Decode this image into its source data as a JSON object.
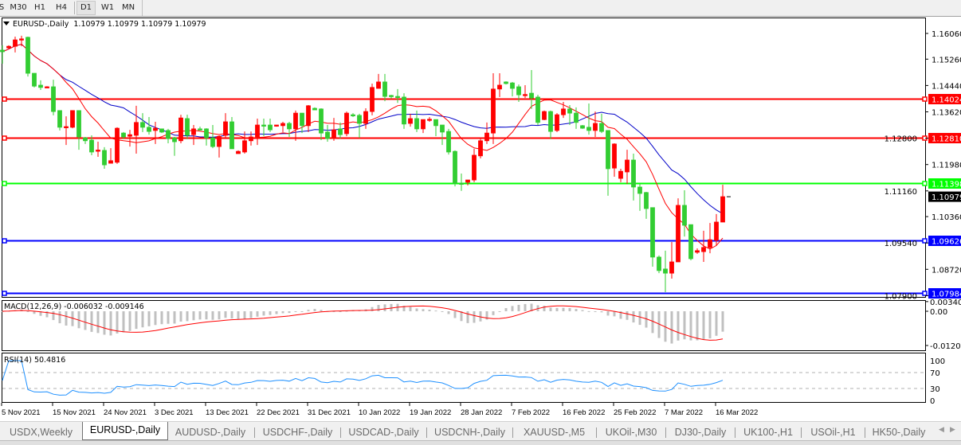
{
  "toolbar": {
    "timeframes": [
      {
        "label": "S",
        "active": false
      },
      {
        "label": "M30",
        "active": false
      },
      {
        "label": "H1",
        "active": false
      },
      {
        "label": "H4",
        "active": false
      },
      {
        "label": "D1",
        "active": true
      },
      {
        "label": "W1",
        "active": false
      },
      {
        "label": "MN",
        "active": false
      }
    ]
  },
  "chart": {
    "symbol_label": "EURUSD-,Daily",
    "ohlc_label": "1.10979 1.10979 1.10979 1.10979",
    "current_price": 1.10979,
    "bull_color": "#ff0000",
    "bear_color": "#32cd32",
    "ma_fast_color": "#ff0000",
    "ma_slow_color": "#0000c8",
    "price_axis_ticks": [
      "1.16060",
      "1.15260",
      "1.14440",
      "1.13620",
      "1.12800",
      "1.11980",
      "1.11160",
      "1.10360",
      "1.09540",
      "1.08720",
      "1.07900"
    ],
    "levels": [
      {
        "price": "1.14024",
        "color": "#ff0000"
      },
      {
        "price": "1.12810",
        "color": "#ff0000"
      },
      {
        "price": "1.11398",
        "color": "#00ff00"
      },
      {
        "price": "1.09626",
        "color": "#0000ff"
      },
      {
        "price": "1.07984",
        "color": "#0000ff"
      }
    ],
    "current_price_label": "1.10979",
    "date_labels": [
      "5 Nov 2021",
      "15 Nov 2021",
      "24 Nov 2021",
      "3 Dec 2021",
      "13 Dec 2021",
      "22 Dec 2021",
      "31 Dec 2021",
      "10 Jan 2022",
      "19 Jan 2022",
      "28 Jan 2022",
      "7 Feb 2022",
      "16 Feb 2022",
      "25 Feb 2022",
      "7 Mar 2022",
      "16 Mar 2022"
    ],
    "candles": [
      [
        1.1554,
        1.1569,
        1.1512,
        1.1549
      ],
      [
        1.1561,
        1.1569,
        1.1559,
        1.1566
      ],
      [
        1.1566,
        1.1596,
        1.1547,
        1.1586
      ],
      [
        1.1586,
        1.1599,
        1.1566,
        1.1589
      ],
      [
        1.1594,
        1.1596,
        1.1472,
        1.1482
      ],
      [
        1.1482,
        1.1482,
        1.1438,
        1.1442
      ],
      [
        1.1445,
        1.146,
        1.143,
        1.1438
      ],
      [
        1.144,
        1.1442,
        1.1438,
        1.144
      ],
      [
        1.144,
        1.1462,
        1.1351,
        1.1363
      ],
      [
        1.1366,
        1.1366,
        1.1304,
        1.1314
      ],
      [
        1.1316,
        1.1348,
        1.1259,
        1.1316
      ],
      [
        1.1314,
        1.1366,
        1.1311,
        1.1366
      ],
      [
        1.1366,
        1.1366,
        1.1244,
        1.1284
      ],
      [
        1.1281,
        1.1284,
        1.1262,
        1.1272
      ],
      [
        1.1274,
        1.1289,
        1.1227,
        1.1237
      ],
      [
        1.1242,
        1.1269,
        1.1222,
        1.1243
      ],
      [
        1.1242,
        1.1252,
        1.1185,
        1.1197
      ],
      [
        1.1202,
        1.1249,
        1.1202,
        1.121
      ],
      [
        1.1205,
        1.1314,
        1.12,
        1.1311
      ],
      [
        1.1296,
        1.1299,
        1.1277,
        1.1284
      ],
      [
        1.1286,
        1.1306,
        1.1254,
        1.1291
      ],
      [
        1.1289,
        1.1381,
        1.1232,
        1.1329
      ],
      [
        1.1329,
        1.1358,
        1.1299,
        1.1314
      ],
      [
        1.1314,
        1.1346,
        1.1291,
        1.1301
      ],
      [
        1.1304,
        1.1331,
        1.1262,
        1.1311
      ],
      [
        1.1309,
        1.1309,
        1.1296,
        1.1299
      ],
      [
        1.1304,
        1.1309,
        1.1264,
        1.1279
      ],
      [
        1.1281,
        1.1284,
        1.1225,
        1.1269
      ],
      [
        1.1272,
        1.1353,
        1.1264,
        1.1343
      ],
      [
        1.1341,
        1.1353,
        1.1277,
        1.1289
      ],
      [
        1.1291,
        1.1321,
        1.1259,
        1.1309
      ],
      [
        1.1309,
        1.1316,
        1.1306,
        1.1306
      ],
      [
        1.1309,
        1.1311,
        1.1257,
        1.1281
      ],
      [
        1.1281,
        1.1321,
        1.1249,
        1.1254
      ],
      [
        1.1254,
        1.1289,
        1.122,
        1.1286
      ],
      [
        1.1289,
        1.1358,
        1.1281,
        1.1331
      ],
      [
        1.1331,
        1.1346,
        1.1247,
        1.1247
      ],
      [
        1.1232,
        1.1242,
        1.1232,
        1.1239
      ],
      [
        1.1237,
        1.1301,
        1.1232,
        1.1272
      ],
      [
        1.1272,
        1.1301,
        1.1257,
        1.1284
      ],
      [
        1.1284,
        1.1341,
        1.1259,
        1.1321
      ],
      [
        1.1321,
        1.1341,
        1.1286,
        1.1319
      ],
      [
        1.1321,
        1.1341,
        1.1299,
        1.1306
      ],
      [
        1.1319,
        1.1321,
        1.1316,
        1.1321
      ],
      [
        1.1319,
        1.1331,
        1.1299,
        1.1326
      ],
      [
        1.1326,
        1.1331,
        1.1284,
        1.1309
      ],
      [
        1.1309,
        1.1366,
        1.1272,
        1.1358
      ],
      [
        1.1358,
        1.1358,
        1.1296,
        1.1319
      ],
      [
        1.1319,
        1.1383,
        1.1299,
        1.1381
      ],
      [
        1.1373,
        1.1376,
        1.1368,
        1.1368
      ],
      [
        1.1371,
        1.1373,
        1.1274,
        1.1296
      ],
      [
        1.1299,
        1.1321,
        1.1269,
        1.1279
      ],
      [
        1.1281,
        1.1343,
        1.1272,
        1.1306
      ],
      [
        1.1309,
        1.1329,
        1.1279,
        1.1291
      ],
      [
        1.1294,
        1.1363,
        1.1286,
        1.1358
      ],
      [
        1.1353,
        1.1358,
        1.1346,
        1.1351
      ],
      [
        1.1351,
        1.1356,
        1.1281,
        1.1326
      ],
      [
        1.1326,
        1.1373,
        1.1309,
        1.1363
      ],
      [
        1.1363,
        1.145,
        1.1351,
        1.1438
      ],
      [
        1.1435,
        1.148,
        1.1435,
        1.1455
      ],
      [
        1.1455,
        1.148,
        1.1395,
        1.141
      ],
      [
        1.1413,
        1.1415,
        1.1403,
        1.141
      ],
      [
        1.141,
        1.1433,
        1.139,
        1.1408
      ],
      [
        1.1408,
        1.142,
        1.1309,
        1.1324
      ],
      [
        1.1326,
        1.1356,
        1.1316,
        1.1341
      ],
      [
        1.1341,
        1.1366,
        1.1299,
        1.1309
      ],
      [
        1.1309,
        1.1338,
        1.1296,
        1.1338
      ],
      [
        1.1338,
        1.1346,
        1.1331,
        1.1339
      ],
      [
        1.1338,
        1.1338,
        1.1286,
        1.1319
      ],
      [
        1.1321,
        1.1321,
        1.1259,
        1.1299
      ],
      [
        1.1301,
        1.1309,
        1.1229,
        1.1237
      ],
      [
        1.1239,
        1.1242,
        1.113,
        1.114
      ],
      [
        1.114,
        1.117,
        1.1116,
        1.1139
      ],
      [
        1.1143,
        1.115,
        1.1133,
        1.115
      ],
      [
        1.115,
        1.1247,
        1.1143,
        1.1227
      ],
      [
        1.1225,
        1.1279,
        1.1217,
        1.1272
      ],
      [
        1.1272,
        1.1329,
        1.1262,
        1.1296
      ],
      [
        1.1296,
        1.1482,
        1.1262,
        1.1433
      ],
      [
        1.1433,
        1.1482,
        1.1408,
        1.1445
      ],
      [
        1.1455,
        1.1457,
        1.1447,
        1.145
      ],
      [
        1.1452,
        1.1455,
        1.141,
        1.1435
      ],
      [
        1.144,
        1.1447,
        1.1393,
        1.1415
      ],
      [
        1.1415,
        1.1445,
        1.1405,
        1.1416
      ],
      [
        1.142,
        1.1492,
        1.1371,
        1.1405
      ],
      [
        1.1408,
        1.1415,
        1.1321,
        1.1329
      ],
      [
        1.1338,
        1.1366,
        1.1336,
        1.1363
      ],
      [
        1.1363,
        1.1366,
        1.1277,
        1.1301
      ],
      [
        1.1304,
        1.1358,
        1.1299,
        1.1353
      ],
      [
        1.1353,
        1.1393,
        1.1343,
        1.1371
      ],
      [
        1.1371,
        1.1383,
        1.1321,
        1.1358
      ],
      [
        1.1358,
        1.1376,
        1.1309,
        1.1329
      ],
      [
        1.1319,
        1.1321,
        1.1309,
        1.1311
      ],
      [
        1.1314,
        1.1388,
        1.1291,
        1.1304
      ],
      [
        1.1304,
        1.1363,
        1.1284,
        1.1326
      ],
      [
        1.1326,
        1.1356,
        1.1296,
        1.1301
      ],
      [
        1.1304,
        1.1304,
        1.1101,
        1.1185
      ],
      [
        1.1187,
        1.1264,
        1.116,
        1.1262
      ],
      [
        1.1155,
        1.1185,
        1.1143,
        1.1177
      ],
      [
        1.1175,
        1.1244,
        1.1138,
        1.1212
      ],
      [
        1.1212,
        1.1232,
        1.1086,
        1.1128
      ],
      [
        1.1128,
        1.1138,
        1.1054,
        1.1108
      ],
      [
        1.1111,
        1.1113,
        1.1029,
        1.1061
      ],
      [
        1.1064,
        1.1064,
        1.088,
        1.091
      ],
      [
        1.091,
        1.0915,
        1.086,
        1.0868
      ],
      [
        1.0873,
        1.093,
        1.0801,
        1.086
      ],
      [
        1.086,
        1.0957,
        1.0843,
        1.0895
      ],
      [
        1.0895,
        1.1093,
        1.0895,
        1.1071
      ],
      [
        1.1071,
        1.1118,
        1.0974,
        1.1009
      ],
      [
        1.1011,
        1.1011,
        1.09,
        1.0905
      ],
      [
        1.0925,
        1.0937,
        1.092,
        1.093
      ],
      [
        1.0927,
        1.0992,
        1.0895,
        1.094
      ],
      [
        1.094,
        1.1016,
        1.0922,
        1.0964
      ],
      [
        1.0962,
        1.1044,
        1.0945,
        1.1019
      ],
      [
        1.1019,
        1.1135,
        1.1019,
        1.1098
      ]
    ]
  },
  "macd": {
    "label": "MACD(12,26,9) -0.006032 -0.009146",
    "axis_ticks": [
      "0.003408",
      "0.00",
      "-0.012058"
    ],
    "max": 0.003408,
    "min": -0.012058,
    "histogram_color": "#c0c0c0",
    "signal_color": "#ff0000"
  },
  "rsi": {
    "label": "RSI(14) 50.4816",
    "axis_ticks": [
      "100",
      "70",
      "30",
      "0"
    ],
    "line_color": "#1e90ff"
  },
  "tabs": [
    {
      "label": "USDX,Weekly",
      "active": false
    },
    {
      "label": "EURUSD-,Daily",
      "active": true
    },
    {
      "label": "AUDUSD-,Daily",
      "active": false
    },
    {
      "label": "USDCHF-,Daily",
      "active": false
    },
    {
      "label": "USDCAD-,Daily",
      "active": false
    },
    {
      "label": "USDCNH-,Daily",
      "active": false
    },
    {
      "label": "XAUUSD-,M5",
      "active": false
    },
    {
      "label": "UKOil-,M30",
      "active": false
    },
    {
      "label": "DJ30-,Daily",
      "active": false
    },
    {
      "label": "UK100-,H1",
      "active": false
    },
    {
      "label": "USOil-,H1",
      "active": false
    },
    {
      "label": "HK50-,Daily",
      "active": false
    }
  ]
}
